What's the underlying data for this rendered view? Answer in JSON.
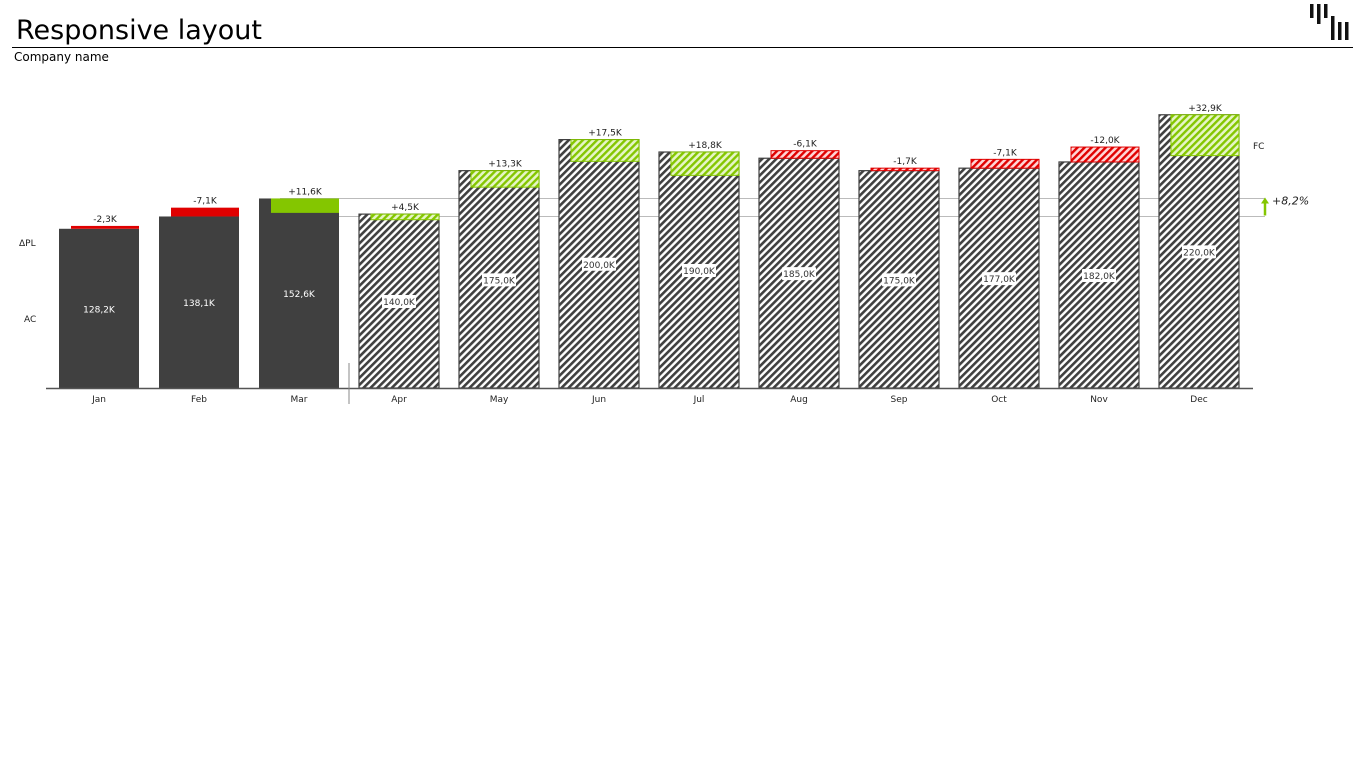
{
  "header": {
    "title": "Responsive layout",
    "subtitle": "Company name"
  },
  "icons": {
    "logo": "brand-bars-logo-icon",
    "delta_arrow": "arrow-up-icon"
  },
  "colors": {
    "actual": "#404040",
    "positive": "#84c600",
    "negative": "#e00000",
    "axis": "#555555",
    "reference_line": "#bbbbbb"
  },
  "chart_data": {
    "type": "bar",
    "title": "",
    "categories": [
      "Jan",
      "Feb",
      "Mar",
      "Apr",
      "May",
      "Jun",
      "Jul",
      "Aug",
      "Sep",
      "Oct",
      "Nov",
      "Dec"
    ],
    "scenario": [
      "AC",
      "AC",
      "AC",
      "FC",
      "FC",
      "FC",
      "FC",
      "FC",
      "FC",
      "FC",
      "FC",
      "FC"
    ],
    "series": [
      {
        "name": "AC / FC",
        "values": [
          128.2,
          138.1,
          152.6,
          140.0,
          175.0,
          200.0,
          190.0,
          185.0,
          175.0,
          177.0,
          182.0,
          220.0
        ],
        "labels": [
          "128,2K",
          "138,1K",
          "152,6K",
          "140,0K",
          "175,0K",
          "200,0K",
          "190,0K",
          "185,0K",
          "175,0K",
          "177,0K",
          "182,0K",
          "220,0K"
        ]
      },
      {
        "name": "ΔPL",
        "values": [
          -2.3,
          -7.1,
          11.6,
          4.5,
          13.3,
          17.5,
          18.8,
          -6.1,
          -1.7,
          -7.1,
          -12.0,
          32.9
        ],
        "labels": [
          "-2,3K",
          "-7,1K",
          "+11,6K",
          "+4,5K",
          "+13,3K",
          "+17,5K",
          "+18,8K",
          "-6,1K",
          "-1,7K",
          "-7,1K",
          "-12,0K",
          "+32,9K"
        ]
      }
    ],
    "row_labels": {
      "delta": "ΔPL",
      "actual": "AC",
      "forecast": "FC"
    },
    "total_delta": {
      "label": "+8,2%",
      "direction": "up"
    },
    "reference_lines": [
      138.1,
      152.6
    ],
    "ylim": [
      0,
      255
    ],
    "grid": false,
    "legend": "none"
  }
}
